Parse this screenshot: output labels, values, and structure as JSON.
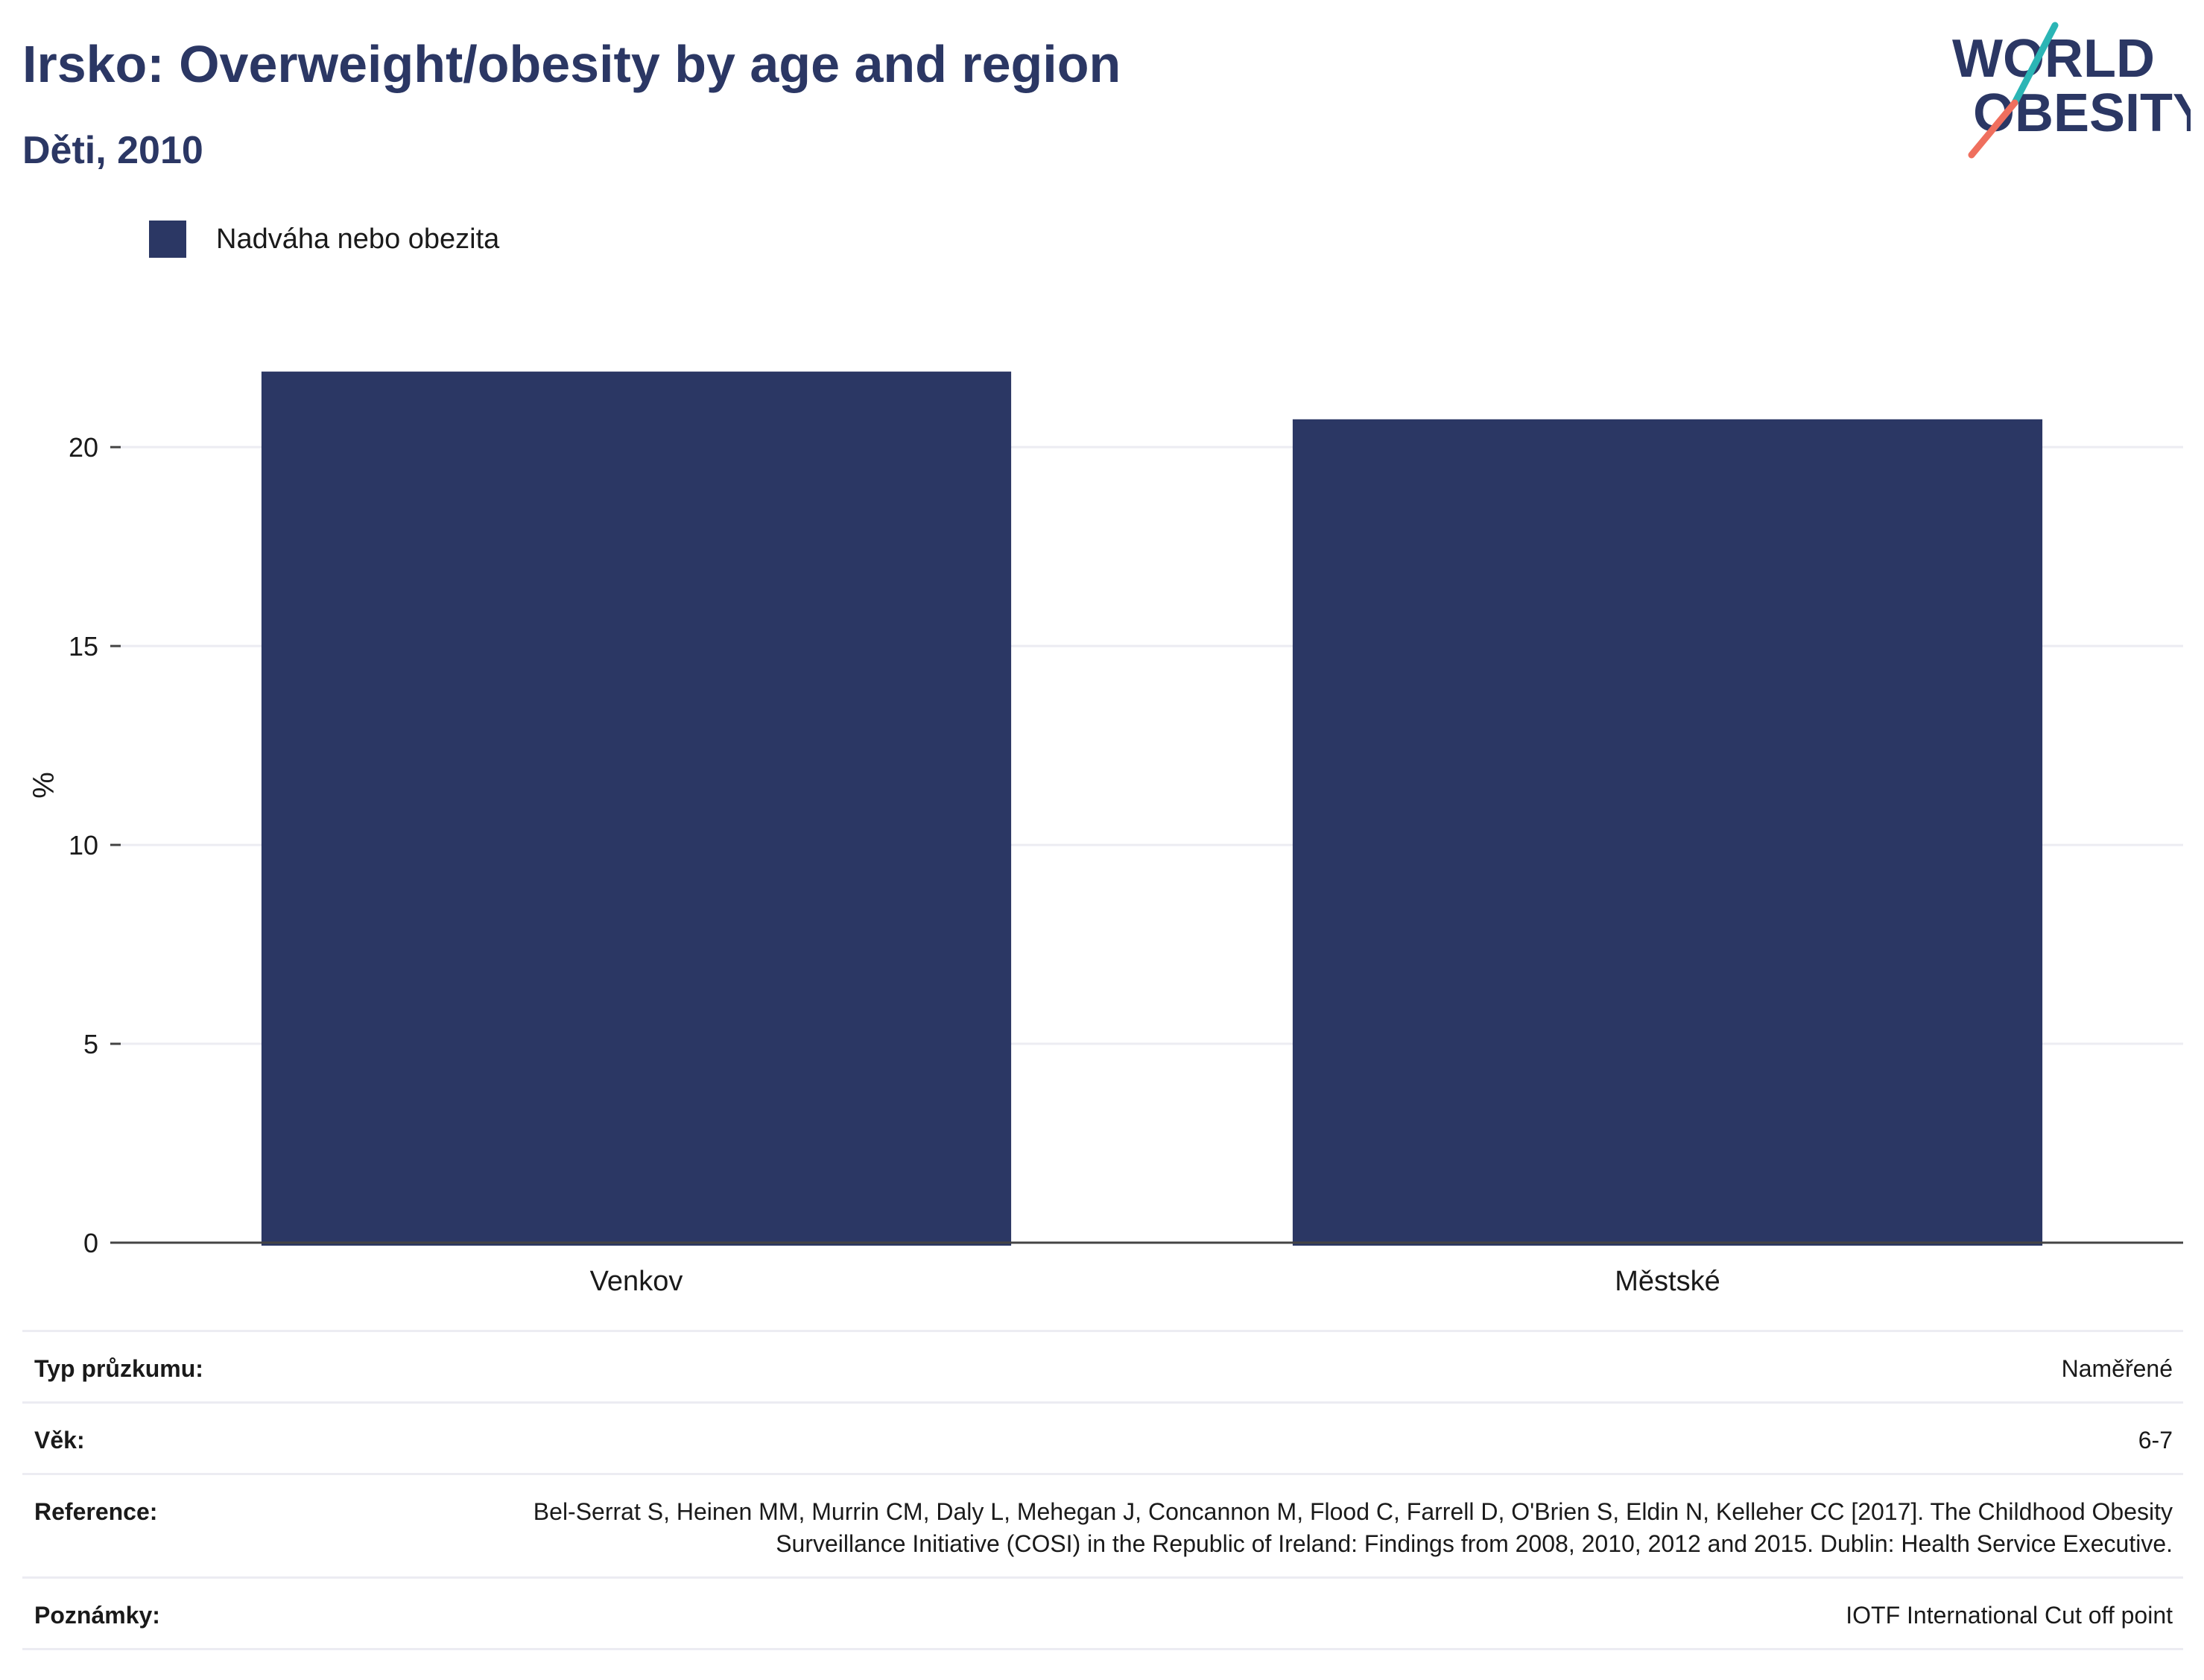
{
  "header": {
    "title": "Irsko: Overweight/obesity by age and region",
    "subtitle": "Děti, 2010"
  },
  "logo": {
    "line1": "WORLD",
    "line2": "OBESITY",
    "accent_teal": "#2bb5b5",
    "accent_coral": "#ef6f5e"
  },
  "colors": {
    "bar": "#2b3764",
    "title": "#2b3764",
    "grid": "#ececf2",
    "axis": "#444444"
  },
  "chart_data": {
    "type": "bar",
    "title": "Irsko: Overweight/obesity by age and region",
    "subtitle": "Děti, 2010",
    "categories": [
      "Venkov",
      "Městské"
    ],
    "series": [
      {
        "name": "Nadváha nebo obezita",
        "values": [
          21.9,
          20.7
        ]
      }
    ],
    "ylabel": "%",
    "xlabel": "",
    "ylim": [
      0,
      23
    ],
    "yticks": [
      0,
      5,
      10,
      15,
      20
    ],
    "grid": true,
    "legend": "top-left"
  },
  "info": [
    {
      "key": "Typ průzkumu:",
      "value": "Naměřené"
    },
    {
      "key": "Věk:",
      "value": "6-7"
    },
    {
      "key": "Reference:",
      "value": "Bel-Serrat S, Heinen MM, Murrin CM, Daly L, Mehegan J, Concannon M, Flood C, Farrell D, O'Brien S, Eldin N, Kelleher CC [2017]. The Childhood Obesity Surveillance Initiative (COSI) in the Republic of Ireland: Findings from 2008, 2010, 2012 and 2015. Dublin: Health Service Executive."
    },
    {
      "key": "Poznámky:",
      "value": "IOTF International Cut off point"
    }
  ]
}
